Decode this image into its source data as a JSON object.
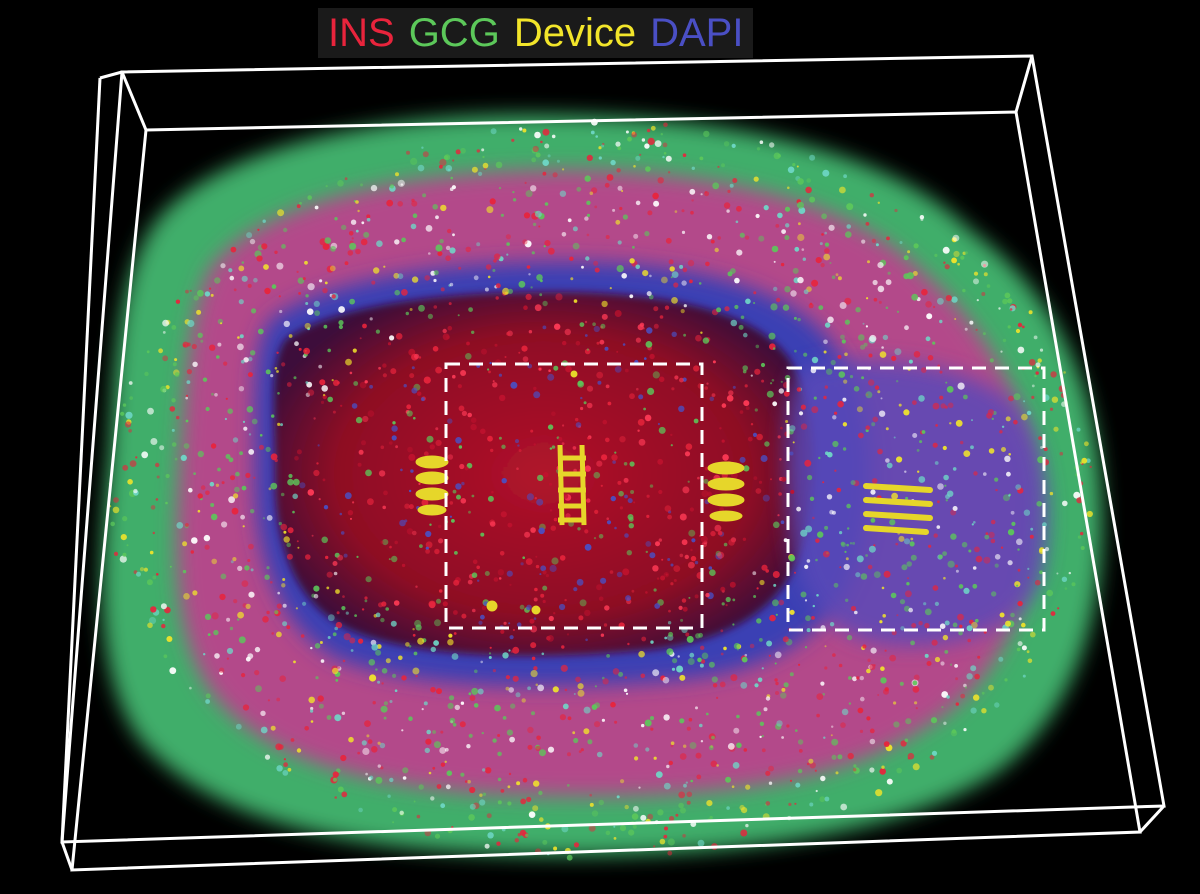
{
  "legend": {
    "items": [
      {
        "label": "INS",
        "color": "#e8243c"
      },
      {
        "label": "GCG",
        "color": "#5cc85a"
      },
      {
        "label": "Device",
        "color": "#f2e52a"
      },
      {
        "label": "DAPI",
        "color": "#4a4fc4"
      }
    ]
  },
  "colors": {
    "background": "#000000",
    "ins": "#e8243c",
    "gcg": "#5cc85a",
    "device": "#f2e52a",
    "dapi": "#4a4fc4",
    "cyan_overlap": "#6fd8c8",
    "bounding_box": "#ffffff",
    "roi_outline": "#ffffff"
  }
}
